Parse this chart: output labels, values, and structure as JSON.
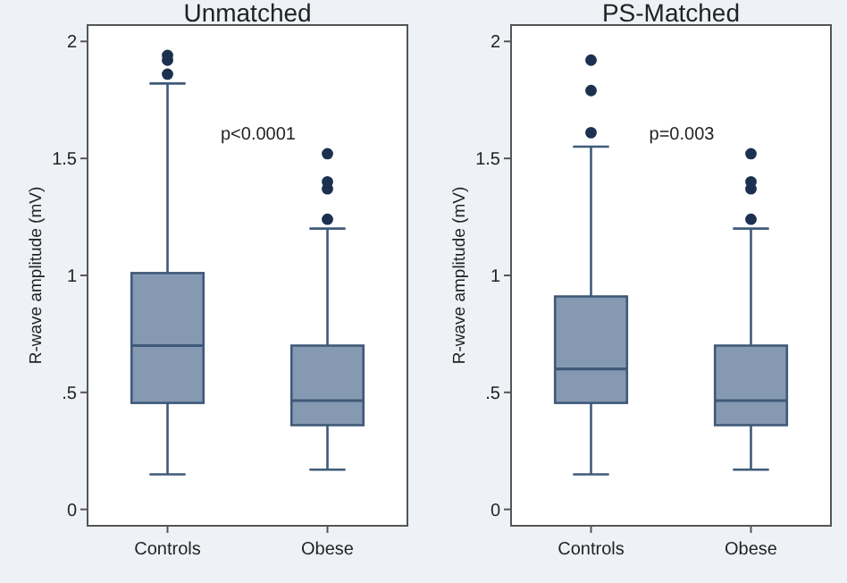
{
  "chart_data": [
    {
      "type": "box",
      "title": "Unmatched",
      "ylabel": "R-wave amplitude (mV)",
      "categories": [
        "Controls",
        "Obese"
      ],
      "color": "#8699b3",
      "ylim": [
        -0.07,
        2.07
      ],
      "yticks": [
        0,
        {
          "value": 0.5,
          "label": ".5"
        },
        1,
        1.5,
        2
      ],
      "annotations": [
        "p<0.0001"
      ],
      "boxes": [
        {
          "low": 0.15,
          "q1": 0.455,
          "median": 0.7,
          "q3": 1.01,
          "high": 1.82,
          "outliers": [
            1.86,
            1.92,
            1.94
          ]
        },
        {
          "low": 0.17,
          "q1": 0.36,
          "median": 0.465,
          "q3": 0.7,
          "high": 1.2,
          "outliers": [
            1.24,
            1.37,
            1.4,
            1.52
          ]
        }
      ]
    },
    {
      "type": "box",
      "title": "PS-Matched",
      "ylabel": "R-wave amplitude (mV)",
      "categories": [
        "Controls",
        "Obese"
      ],
      "color": "#8699b3",
      "ylim": [
        -0.07,
        2.07
      ],
      "yticks": [
        0,
        {
          "value": 0.5,
          "label": ".5"
        },
        1,
        1.5,
        2
      ],
      "annotations": [
        "p=0.003"
      ],
      "boxes": [
        {
          "low": 0.15,
          "q1": 0.455,
          "median": 0.6,
          "q3": 0.91,
          "high": 1.55,
          "outliers": [
            1.61,
            1.79,
            1.92
          ]
        },
        {
          "low": 0.17,
          "q1": 0.36,
          "median": 0.465,
          "q3": 0.7,
          "high": 1.2,
          "outliers": [
            1.24,
            1.37,
            1.4,
            1.52
          ]
        }
      ]
    }
  ]
}
